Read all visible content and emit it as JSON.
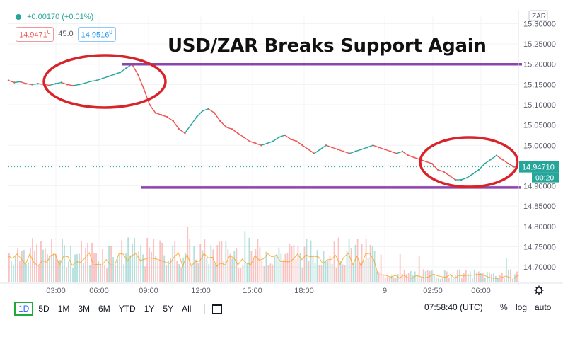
{
  "header": {
    "change": "+0.00170 (+0.01%)",
    "bid": "14.9471",
    "bid_sup": "0",
    "spread": "45.0",
    "ask": "14.9516",
    "ask_sup": "0"
  },
  "chart_data": {
    "type": "line",
    "title": "USD/ZAR Breaks Support Again",
    "currency": "ZAR",
    "y_ticks": [
      "15.30000",
      "15.25000",
      "15.20000",
      "15.15000",
      "15.10000",
      "15.05000",
      "15.00000",
      "14.95000",
      "14.90000",
      "14.85000",
      "14.80000",
      "14.75000",
      "14.70000"
    ],
    "ylim": [
      14.66,
      15.32
    ],
    "x_ticks": [
      "03:00",
      "06:00",
      "09:00",
      "12:00",
      "15:00",
      "18:00",
      "9",
      "02:50",
      "06:00"
    ],
    "series": [
      {
        "values": [
          15.16,
          15.155,
          15.157,
          15.152,
          15.15,
          15.152,
          15.15,
          15.148,
          15.152,
          15.155,
          15.15,
          15.147,
          15.15,
          15.153,
          15.158,
          15.16,
          15.165,
          15.17,
          15.175,
          15.18,
          15.19,
          15.2,
          15.175,
          15.14,
          15.1,
          15.08,
          15.075,
          15.07,
          15.06,
          15.04,
          15.03,
          15.05,
          15.07,
          15.085,
          15.09,
          15.08,
          15.06,
          15.045,
          15.04,
          15.03,
          15.02,
          15.01,
          15.005,
          15.0,
          15.005,
          15.01,
          15.02,
          15.025,
          15.015,
          15.01,
          15.0,
          14.99,
          14.98,
          14.99,
          15.0,
          14.995,
          14.99,
          14.985,
          14.98,
          14.985,
          14.99,
          14.995,
          15.0,
          14.995,
          14.99,
          14.985,
          14.98,
          14.985,
          14.975,
          14.97,
          14.965,
          14.96,
          14.955,
          14.94,
          14.935,
          14.925,
          14.915,
          14.915,
          14.92,
          14.93,
          14.94,
          14.955,
          14.965,
          14.975,
          14.965,
          14.955,
          14.947
        ]
      }
    ],
    "current_price": "14.94710",
    "countdown": "00:20",
    "support_levels": [
      15.2,
      14.896
    ],
    "volume_series": true,
    "volume_max": 7.0,
    "grid": true
  },
  "toolbar": {
    "ranges": [
      "1D",
      "5D",
      "1M",
      "3M",
      "6M",
      "YTD",
      "1Y",
      "5Y",
      "All"
    ],
    "active": "1D",
    "time": "07:58:40 (UTC)",
    "percent": "%",
    "log": "log",
    "auto": "auto"
  },
  "colors": {
    "up": "#26a69a",
    "down": "#ef5350",
    "resistance": "#8e44ad",
    "circle": "#d8232a",
    "price_tag": "#26a69a"
  }
}
